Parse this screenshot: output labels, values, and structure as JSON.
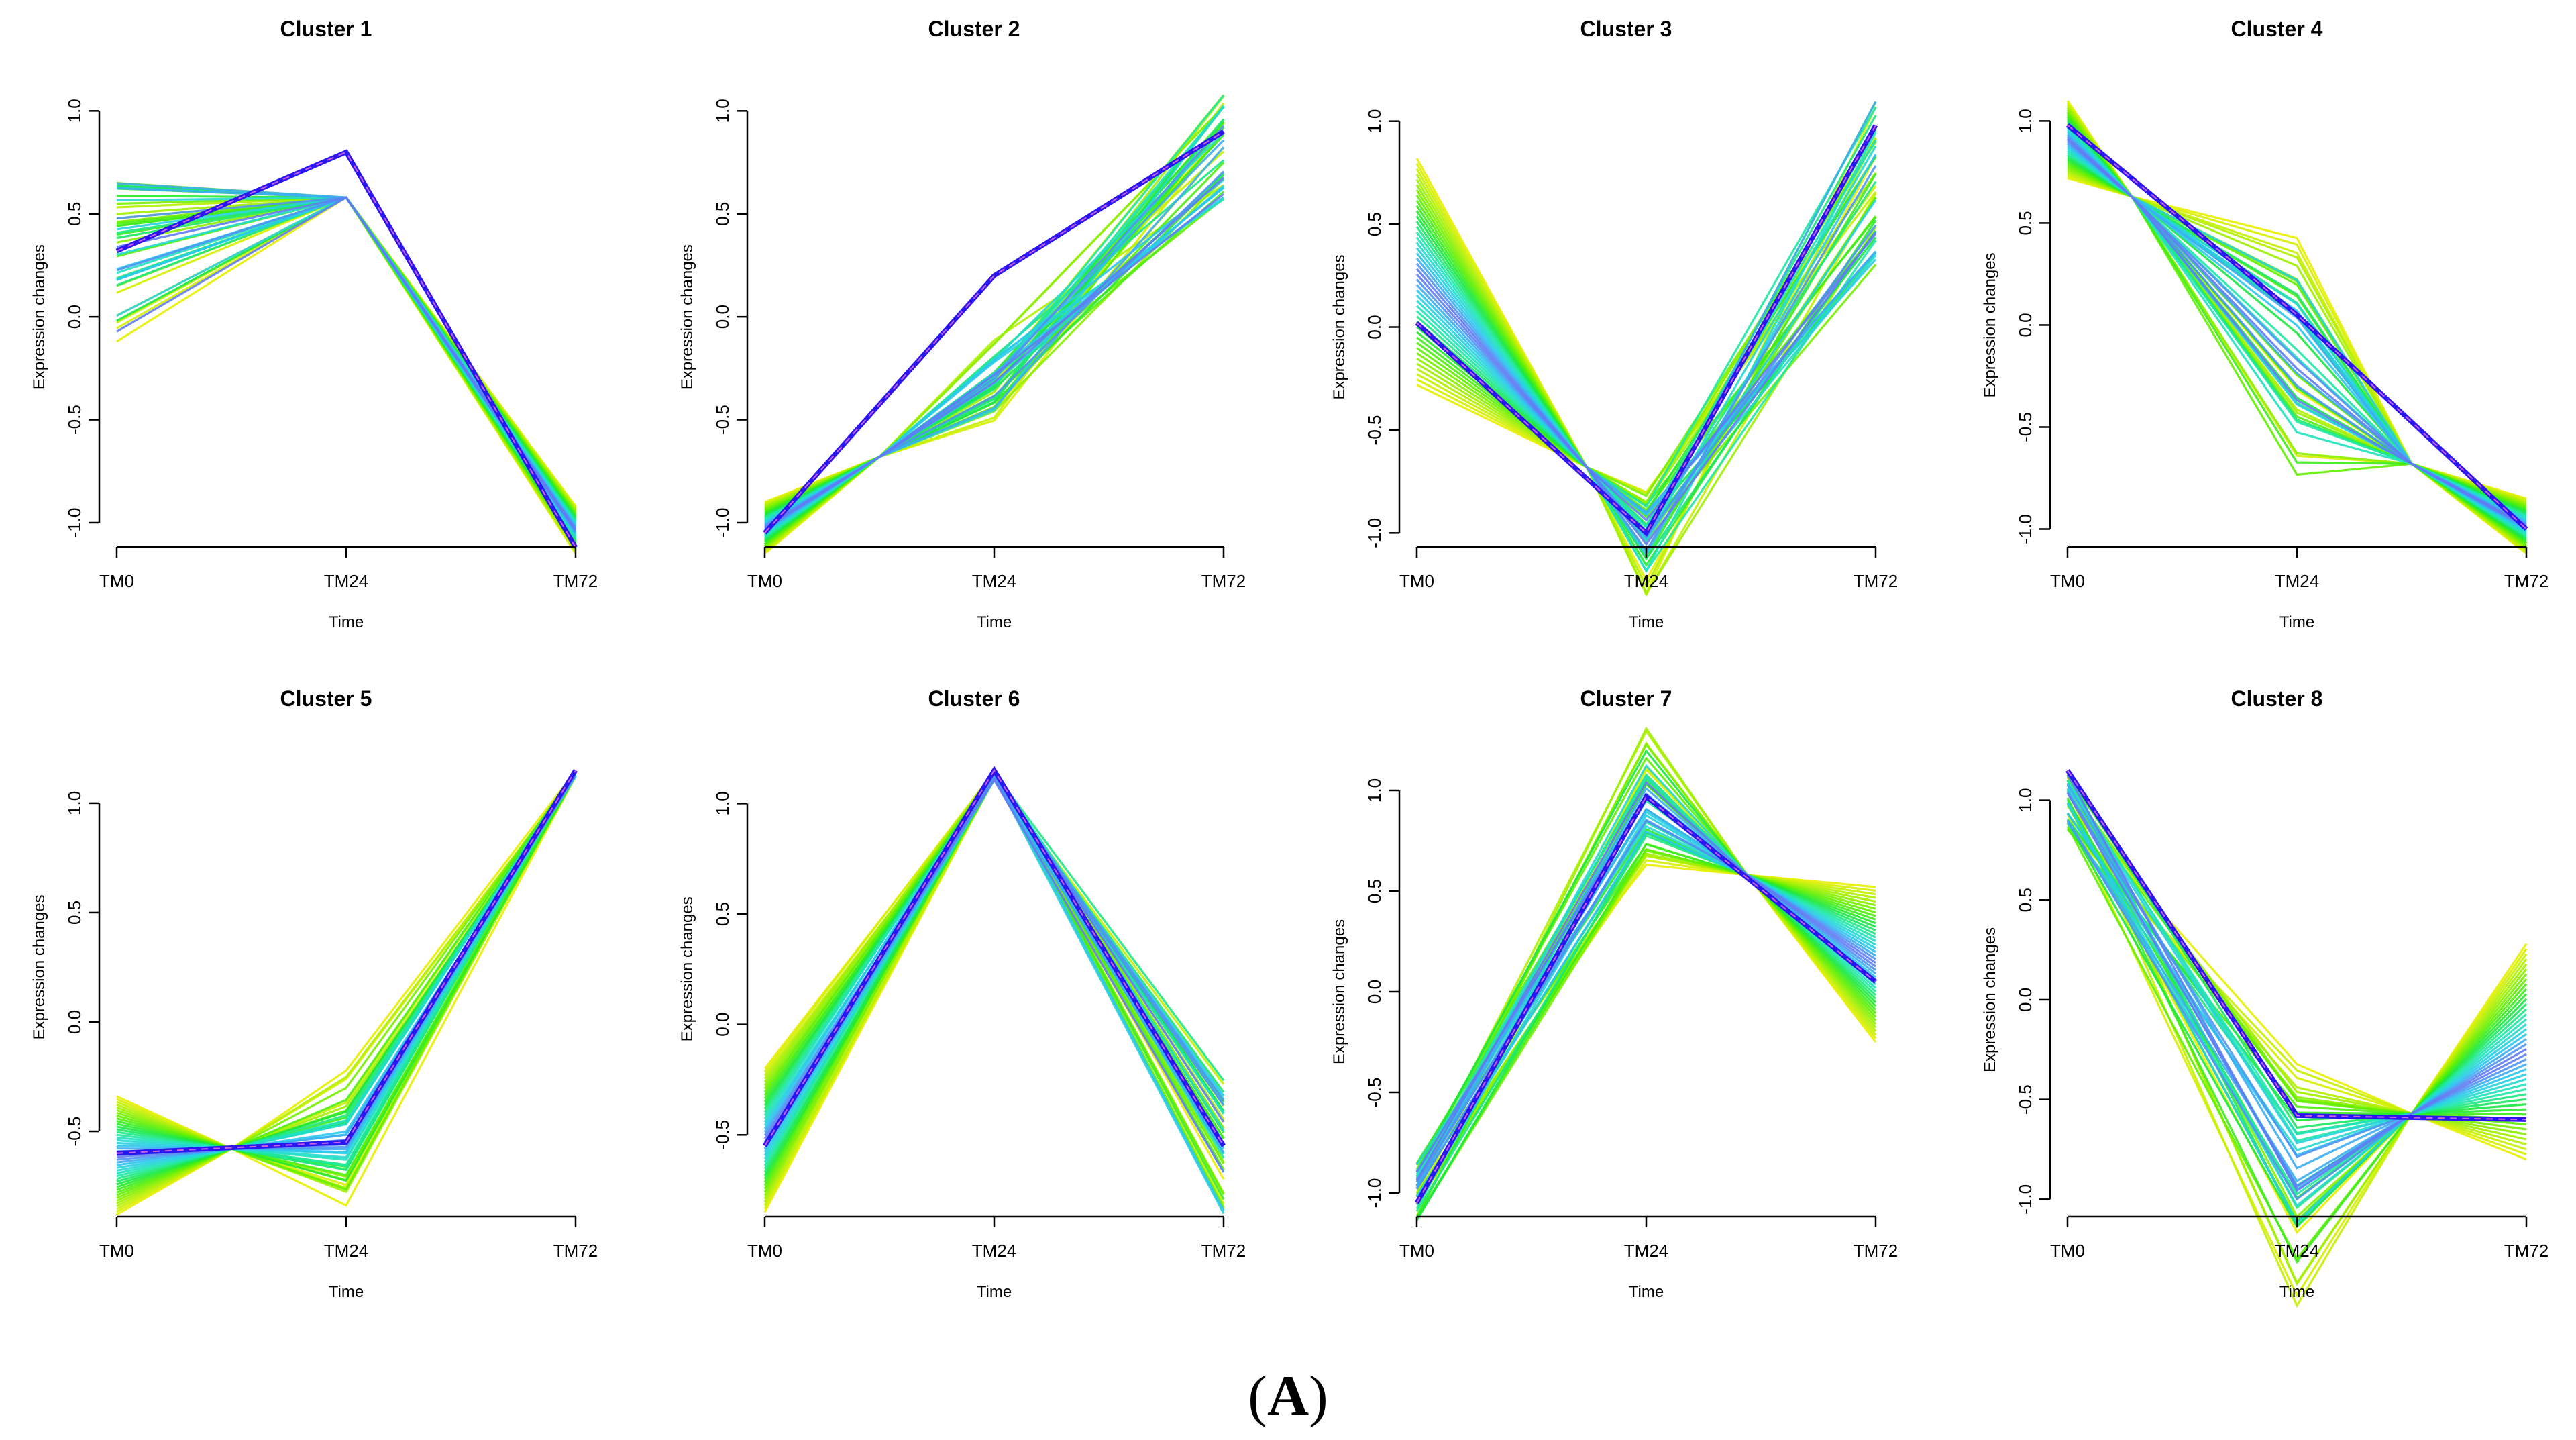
{
  "figure": {
    "panel_letter": "A",
    "panel_label_open": "(",
    "panel_label_close": ")"
  },
  "colors": {
    "median": "#2a16f0",
    "ramp": [
      "#e8f000",
      "#a8f000",
      "#5ff000",
      "#1ae838",
      "#1ee8b0",
      "#2ac8f0",
      "#6a70f5"
    ]
  },
  "chart_data": [
    {
      "type": "line",
      "title": "Cluster 1",
      "xlabel": "Time",
      "ylabel": "Expression changes",
      "categories": [
        "TM0",
        "TM24",
        "TM72"
      ],
      "yticks": [
        "-1.0",
        "-0.5",
        "0.0",
        "0.5",
        "1.0"
      ],
      "ytick_values": [
        -1.0,
        -0.5,
        0.0,
        0.5,
        1.0
      ],
      "ylim": [
        -1.15,
        1.05
      ],
      "cross": [
        0.5,
        0.58
      ],
      "start_range": [
        -0.12,
        0.7
      ],
      "end_range": [
        -1.15,
        -0.92
      ],
      "median": [
        0.32,
        0.8,
        -1.12
      ]
    },
    {
      "type": "line",
      "title": "Cluster 2",
      "xlabel": "Time",
      "ylabel": "Expression changes",
      "categories": [
        "TM0",
        "TM24",
        "TM72"
      ],
      "yticks": [
        "-1.0",
        "-0.5",
        "0.0",
        "0.5",
        "1.0"
      ],
      "ytick_values": [
        -1.0,
        -0.5,
        0.0,
        0.5,
        1.0
      ],
      "ylim": [
        -1.15,
        1.05
      ],
      "cross": [
        0.25,
        -0.68
      ],
      "start_range": [
        -1.15,
        -0.9
      ],
      "end_range": [
        0.57,
        1.08
      ],
      "median": [
        -1.05,
        0.2,
        0.9
      ]
    },
    {
      "type": "line",
      "title": "Cluster 3",
      "xlabel": "Time",
      "ylabel": "Expression changes",
      "categories": [
        "TM0",
        "TM24",
        "TM72"
      ],
      "yticks": [
        "-1.0",
        "-0.5",
        "0.0",
        "0.5",
        "1.0"
      ],
      "ytick_values": [
        -1.0,
        -0.5,
        0.0,
        0.5,
        1.0
      ],
      "ylim": [
        -1.1,
        1.1
      ],
      "cross": [
        0.37,
        -0.68
      ],
      "start_range": [
        -0.28,
        0.82
      ],
      "end_range": [
        0.3,
        1.1
      ],
      "median": [
        0.02,
        -1.0,
        0.98
      ]
    },
    {
      "type": "line",
      "title": "Cluster 4",
      "xlabel": "Time",
      "ylabel": "Expression changes",
      "categories": [
        "TM0",
        "TM24",
        "TM72"
      ],
      "yticks": [
        "-1.0",
        "-0.5",
        "0.0",
        "0.5",
        "1.0"
      ],
      "ytick_values": [
        -1.0,
        -0.5,
        0.0,
        0.5,
        1.0
      ],
      "ylim": [
        -1.12,
        1.1
      ],
      "cross": [
        0.14,
        0.63
      ],
      "cross2": [
        0.75,
        -0.68
      ],
      "start_range": [
        0.72,
        1.1
      ],
      "end_range": [
        -1.12,
        -0.85
      ],
      "median": [
        0.98,
        0.05,
        -1.0
      ]
    },
    {
      "type": "line",
      "title": "Cluster 5",
      "xlabel": "Time",
      "ylabel": "Expression changes",
      "categories": [
        "TM0",
        "TM24",
        "TM72"
      ],
      "yticks": [
        "-0.5",
        "0.0",
        "0.5",
        "1.0"
      ],
      "ytick_values": [
        -0.5,
        0.0,
        0.5,
        1.0
      ],
      "ylim": [
        -0.92,
        1.15
      ],
      "cross": [
        0.25,
        -0.58
      ],
      "start_range": [
        -0.88,
        -0.34
      ],
      "end_range": [
        1.12,
        1.15
      ],
      "median": [
        -0.6,
        -0.55,
        1.15
      ]
    },
    {
      "type": "line",
      "title": "Cluster 6",
      "xlabel": "Time",
      "ylabel": "Expression changes",
      "categories": [
        "TM0",
        "TM24",
        "TM72"
      ],
      "yticks": [
        "-0.5",
        "0.0",
        "0.5",
        "1.0"
      ],
      "ytick_values": [
        -0.5,
        0.0,
        0.5,
        1.0
      ],
      "ylim": [
        -0.9,
        1.15
      ],
      "start_range": [
        -0.85,
        -0.2
      ],
      "end_range": [
        -0.87,
        -0.25
      ],
      "median": [
        -0.55,
        1.15,
        -0.55
      ]
    },
    {
      "type": "line",
      "title": "Cluster 7",
      "xlabel": "Time",
      "ylabel": "Expression changes",
      "categories": [
        "TM0",
        "TM24",
        "TM72"
      ],
      "yticks": [
        "-1.0",
        "-0.5",
        "0.0",
        "0.5",
        "1.0"
      ],
      "ytick_values": [
        -1.0,
        -0.5,
        0.0,
        0.5,
        1.0
      ],
      "ylim": [
        -1.15,
        1.1
      ],
      "cross": [
        0.72,
        0.58
      ],
      "start_range": [
        -1.15,
        -0.85
      ],
      "end_range": [
        -0.25,
        0.52
      ],
      "median": [
        -1.05,
        0.97,
        0.05
      ]
    },
    {
      "type": "line",
      "title": "Cluster 8",
      "xlabel": "Time",
      "ylabel": "Expression changes",
      "categories": [
        "TM0",
        "TM24",
        "TM72"
      ],
      "yticks": [
        "-1.0",
        "-0.5",
        "0.0",
        "0.5",
        "1.0"
      ],
      "ytick_values": [
        -1.0,
        -0.5,
        0.0,
        0.5,
        1.0
      ],
      "ylim": [
        -1.12,
        1.15
      ],
      "cross": [
        0.75,
        -0.57
      ],
      "start_range": [
        0.85,
        1.15
      ],
      "end_range": [
        -0.8,
        0.28
      ],
      "median": [
        1.15,
        -0.58,
        -0.6
      ]
    }
  ]
}
